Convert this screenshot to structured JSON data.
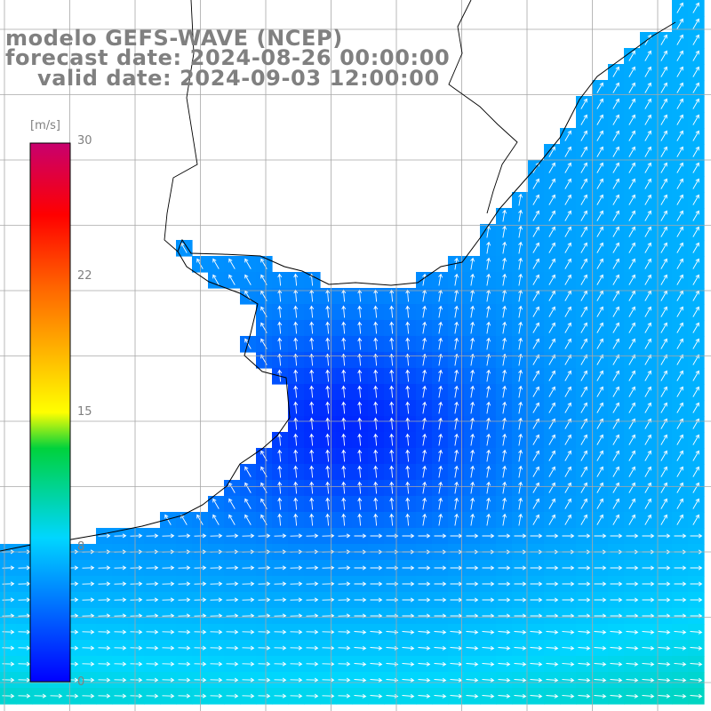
{
  "title": {
    "line1": "modelo GEFS-WAVE (NCEP)",
    "line2": "forecast date: 2024-08-26 00:00:00",
    "line3": "valid date: 2024-09-03 12:00:00",
    "text_color": "#808080"
  },
  "colorbar": {
    "unit": "[m/s]",
    "ticks": [
      "30",
      "22",
      "15",
      "8",
      "0"
    ],
    "range": [
      0,
      30
    ],
    "stops": [
      {
        "value": 0,
        "color": "#0000ff"
      },
      {
        "value": 8,
        "color": "#00d6ff"
      },
      {
        "value": 13,
        "color": "#00d23c"
      },
      {
        "value": 15,
        "color": "#ffff00"
      },
      {
        "value": 22,
        "color": "#ff6400"
      },
      {
        "value": 26,
        "color": "#ff0000"
      },
      {
        "value": 30,
        "color": "#c8006e"
      }
    ]
  },
  "map": {
    "land_color": "#ffffff",
    "grid_color": "#a8a8a8",
    "coast_color": "#000000",
    "arrow_color": "#ffffff",
    "field": "wind speed and direction over ocean"
  }
}
